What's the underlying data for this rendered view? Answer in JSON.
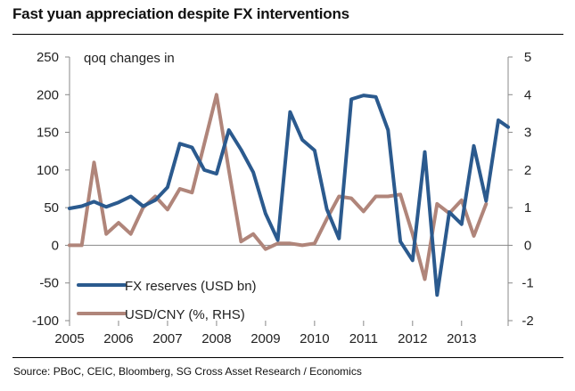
{
  "title": "Fast yuan appreciation despite FX interventions",
  "source": "Source: PBoC, CEIC, Bloomberg, SG Cross Asset Research / Economics",
  "chart_data": {
    "type": "line",
    "title": "Fast yuan appreciation despite FX interventions",
    "annotation": "qoq changes in",
    "x_ticks": [
      "2005",
      "2006",
      "2007",
      "2008",
      "2009",
      "2010",
      "2011",
      "2012",
      "2013"
    ],
    "x_range": [
      2005.0,
      2013.95
    ],
    "y_left": {
      "range": [
        -100,
        250
      ],
      "ticks": [
        250,
        200,
        150,
        100,
        50,
        0,
        -50,
        -100
      ]
    },
    "y_right": {
      "range": [
        -2,
        5
      ],
      "ticks": [
        5,
        4,
        3,
        2,
        1,
        0,
        -1,
        -2
      ]
    },
    "grid": false,
    "legend_position": "bottom-left",
    "series": [
      {
        "name": "FX reserves (USD bn)",
        "axis": "left",
        "color": "#2b5a8e",
        "points": [
          [
            2005.0,
            49
          ],
          [
            2005.25,
            52
          ],
          [
            2005.5,
            58
          ],
          [
            2005.75,
            51
          ],
          [
            2006.0,
            57
          ],
          [
            2006.25,
            65
          ],
          [
            2006.5,
            52
          ],
          [
            2006.75,
            60
          ],
          [
            2007.0,
            77
          ],
          [
            2007.25,
            135
          ],
          [
            2007.5,
            130
          ],
          [
            2007.75,
            100
          ],
          [
            2008.0,
            95
          ],
          [
            2008.25,
            153
          ],
          [
            2008.5,
            127
          ],
          [
            2008.75,
            97
          ],
          [
            2009.0,
            42
          ],
          [
            2009.25,
            7
          ],
          [
            2009.5,
            177
          ],
          [
            2009.75,
            140
          ],
          [
            2010.0,
            126
          ],
          [
            2010.25,
            48
          ],
          [
            2010.5,
            9
          ],
          [
            2010.75,
            194
          ],
          [
            2011.0,
            199
          ],
          [
            2011.25,
            197
          ],
          [
            2011.5,
            153
          ],
          [
            2011.75,
            5
          ],
          [
            2012.0,
            -20
          ],
          [
            2012.25,
            124
          ],
          [
            2012.5,
            -66
          ],
          [
            2012.75,
            44
          ],
          [
            2013.0,
            28
          ],
          [
            2013.25,
            132
          ],
          [
            2013.5,
            59
          ],
          [
            2013.75,
            166
          ],
          [
            2013.95,
            157
          ]
        ]
      },
      {
        "name": "USD/CNY (%, RHS)",
        "axis": "right",
        "color": "#b0857a",
        "points": [
          [
            2005.0,
            0.0
          ],
          [
            2005.25,
            0.0
          ],
          [
            2005.5,
            2.2
          ],
          [
            2005.75,
            0.3
          ],
          [
            2006.0,
            0.6
          ],
          [
            2006.25,
            0.3
          ],
          [
            2006.5,
            1.0
          ],
          [
            2006.75,
            1.3
          ],
          [
            2007.0,
            0.95
          ],
          [
            2007.25,
            1.5
          ],
          [
            2007.5,
            1.4
          ],
          [
            2007.75,
            2.7
          ],
          [
            2008.0,
            4.0
          ],
          [
            2008.25,
            2.0
          ],
          [
            2008.5,
            0.1
          ],
          [
            2008.75,
            0.3
          ],
          [
            2009.0,
            -0.1
          ],
          [
            2009.25,
            0.05
          ],
          [
            2009.5,
            0.05
          ],
          [
            2009.75,
            0.0
          ],
          [
            2010.0,
            0.05
          ],
          [
            2010.25,
            0.7
          ],
          [
            2010.5,
            1.3
          ],
          [
            2010.75,
            1.25
          ],
          [
            2011.0,
            0.9
          ],
          [
            2011.25,
            1.3
          ],
          [
            2011.5,
            1.3
          ],
          [
            2011.75,
            1.35
          ],
          [
            2012.0,
            0.3
          ],
          [
            2012.25,
            -0.9
          ],
          [
            2012.5,
            1.1
          ],
          [
            2012.75,
            0.85
          ],
          [
            2013.0,
            1.2
          ],
          [
            2013.25,
            0.25
          ],
          [
            2013.5,
            1.1
          ]
        ]
      }
    ]
  }
}
